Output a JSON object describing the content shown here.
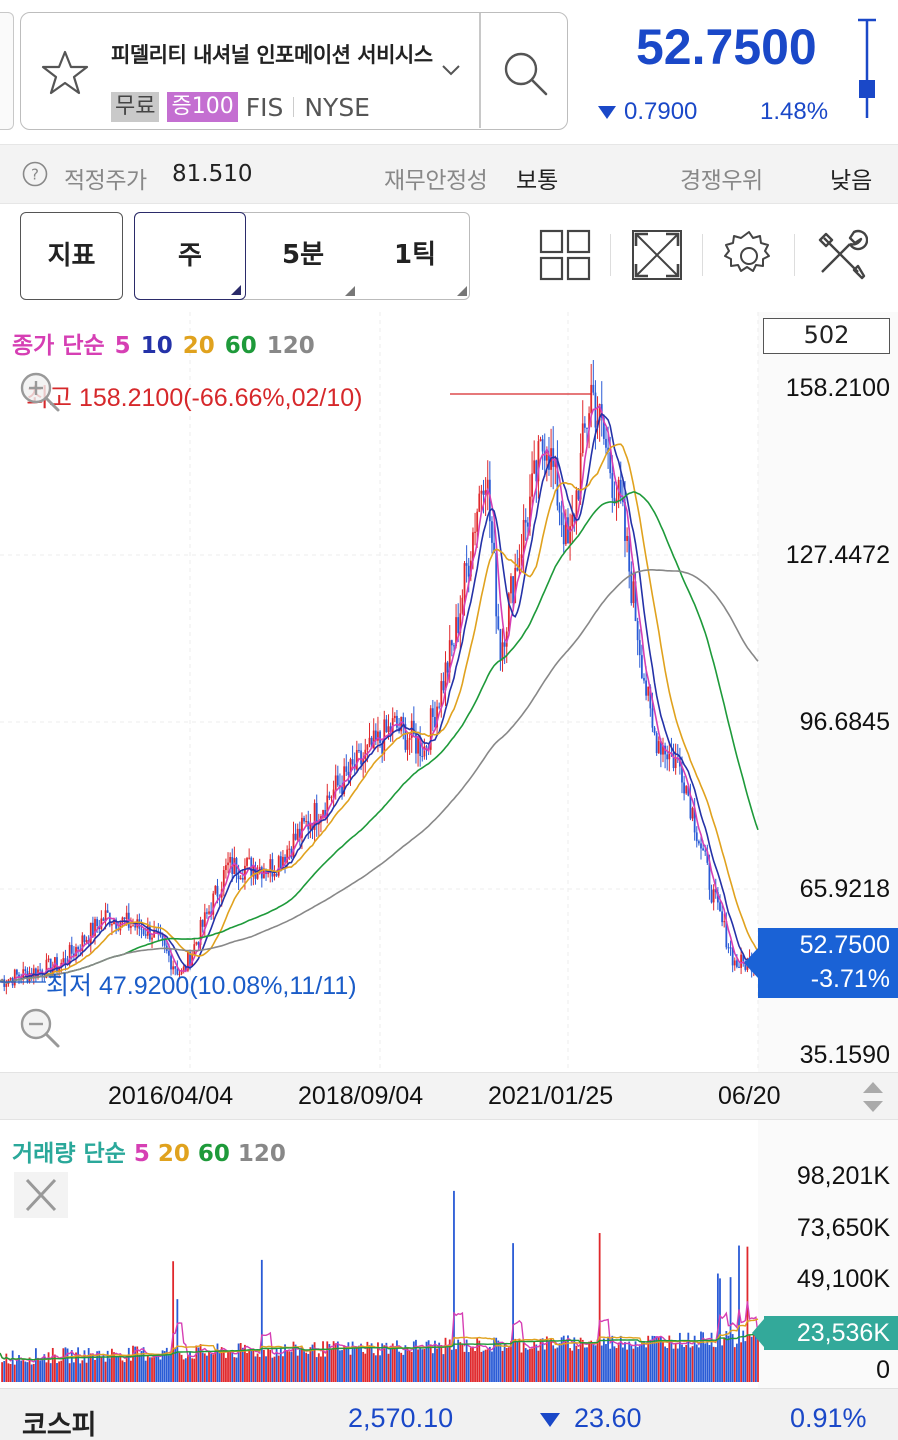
{
  "header": {
    "stock_name": "피델리티 내셔널 인포메이션 서비시스",
    "tags": {
      "free": "무료",
      "margin": "증100",
      "ticker": "FIS",
      "exchange": "NYSE"
    },
    "price": "52.7500",
    "change": "0.7900",
    "change_direction": "down",
    "change_pct": "1.48%",
    "price_color": "#1a48c8"
  },
  "info_bar": {
    "fair_value_label": "적정주가",
    "fair_value": "81.510",
    "stability_label": "재무안정성",
    "stability_value": "보통",
    "competition_label": "경쟁우위",
    "competition_value": "낮음"
  },
  "toolbar": {
    "indicator_label": "지표",
    "periods": [
      "주",
      "5분",
      "1틱"
    ],
    "selected_period": "주",
    "tools": [
      "layout-grid-icon",
      "expand-icon",
      "gear-icon",
      "tools-icon"
    ]
  },
  "chart": {
    "ma_legend": {
      "prefix": "종가 단순",
      "p5": "5",
      "p10": "10",
      "p20": "20",
      "p60": "60",
      "p120": "120"
    },
    "ma_colors": {
      "ma5": "#d63fb4",
      "ma10": "#2432a8",
      "ma20": "#e0a21e",
      "ma60": "#1e9a3a",
      "ma120": "#888888"
    },
    "candle_count": "502",
    "y_ticks": [
      "158.2100",
      "127.4472",
      "96.6845",
      "65.9218",
      "35.1590"
    ],
    "high_label": "최고 158.2100(-66.66%,02/10)",
    "low_label": "최저 47.9200(10.08%,11/11)",
    "last_price_tag": {
      "price": "52.7500",
      "pct": "-3.71%"
    },
    "x_ticks": [
      "2016/04/04",
      "2018/09/04",
      "2021/01/25",
      "06/20"
    ]
  },
  "volume": {
    "legend": {
      "prefix": "거래량 단순",
      "p5": "5",
      "p20": "20",
      "p60": "60",
      "p120": "120"
    },
    "y_ticks": [
      "98,201K",
      "73,650K",
      "49,100K",
      "0"
    ],
    "current": "23,536K"
  },
  "footer": {
    "index_name": "코스피",
    "index_value": "2,570.10",
    "index_change": "23.60",
    "index_pct": "0.91%"
  },
  "chart_data": {
    "type": "line",
    "title": "",
    "x": [
      "2016/04/04",
      "2018/09/04",
      "2021/01/25",
      "06/20"
    ],
    "series": [
      {
        "name": "종가",
        "values": [
          60,
          80,
          125,
          52.75
        ]
      }
    ],
    "high": 158.21,
    "low": 47.92,
    "last": 52.75,
    "ylim": [
      35.159,
      158.21
    ],
    "grid": true
  }
}
